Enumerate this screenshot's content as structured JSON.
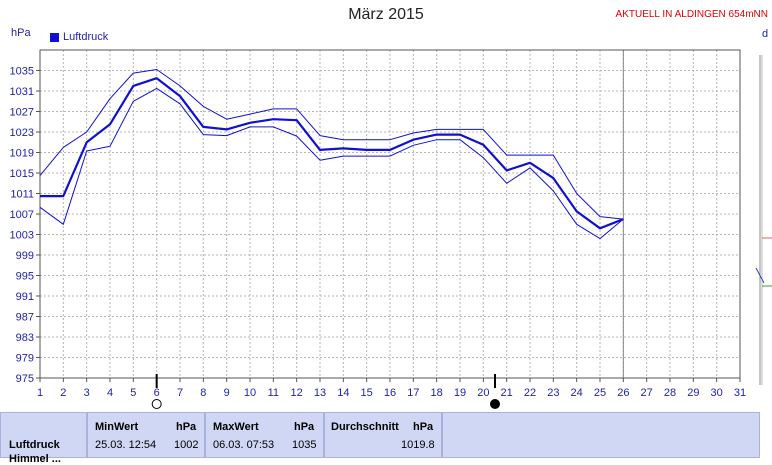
{
  "header": {
    "title": "März 2015",
    "aktuell": "AKTUELL IN ALDINGEN 654mNN",
    "unit": "hPa",
    "right_cut_label": "d"
  },
  "chart_data": {
    "type": "line",
    "title": "März 2015",
    "ylabel": "hPa",
    "xlabel": "",
    "ylim": [
      975,
      1039
    ],
    "yticks": [
      975,
      979,
      983,
      987,
      991,
      995,
      999,
      1003,
      1007,
      1011,
      1015,
      1019,
      1023,
      1027,
      1031,
      1035
    ],
    "xlim": [
      1,
      31
    ],
    "xticks": [
      1,
      2,
      3,
      4,
      5,
      6,
      7,
      8,
      9,
      10,
      11,
      12,
      13,
      14,
      15,
      16,
      17,
      18,
      19,
      20,
      21,
      22,
      23,
      24,
      25,
      26,
      27,
      28,
      29,
      30,
      31
    ],
    "grid": true,
    "legend": "top-left",
    "series": [
      {
        "name": "Luftdruck",
        "role": "mean",
        "color": "#1010d0",
        "x": [
          1,
          2,
          3,
          4,
          5,
          6,
          7,
          8,
          9,
          10,
          11,
          12,
          13,
          14,
          15,
          16,
          17,
          18,
          19,
          20,
          21,
          22,
          23,
          24,
          25,
          26
        ],
        "values": [
          1010.5,
          1010.5,
          1021,
          1024.5,
          1032,
          1033.5,
          1030,
          1024,
          1023.5,
          1024.8,
          1025.5,
          1025.3,
          1019.5,
          1019.8,
          1019.5,
          1019.5,
          1021.5,
          1022.5,
          1022.5,
          1020.5,
          1015.5,
          1017,
          1014,
          1007.5,
          1004.2,
          1006
        ]
      },
      {
        "role": "max",
        "color": "#1010d0",
        "x": [
          1,
          2,
          3,
          4,
          5,
          6,
          7,
          8,
          9,
          10,
          11,
          12,
          13,
          14,
          15,
          16,
          17,
          18,
          19,
          20,
          21,
          22,
          23,
          24,
          25,
          26
        ],
        "values": [
          1014.5,
          1020,
          1023,
          1029.5,
          1034.5,
          1035.2,
          1032,
          1028,
          1025.5,
          1026.5,
          1027.5,
          1027.5,
          1022.3,
          1021.5,
          1021.5,
          1021.5,
          1022.8,
          1023.5,
          1023.5,
          1023.5,
          1018.5,
          1018.5,
          1018.5,
          1011,
          1006.5,
          1006
        ]
      },
      {
        "role": "min",
        "color": "#1010d0",
        "x": [
          1,
          2,
          3,
          4,
          5,
          6,
          7,
          8,
          9,
          10,
          11,
          12,
          13,
          14,
          15,
          16,
          17,
          18,
          19,
          20,
          21,
          22,
          23,
          24,
          25,
          26
        ],
        "values": [
          1008.3,
          1005,
          1019.3,
          1020.2,
          1029,
          1031.5,
          1028.5,
          1022.5,
          1022.3,
          1024,
          1024,
          1022.2,
          1017.5,
          1018.3,
          1018.3,
          1018.3,
          1020.4,
          1021.5,
          1021.5,
          1018,
          1013,
          1016,
          1011.5,
          1005,
          1002.2,
          1006
        ]
      }
    ],
    "moon_phases": [
      {
        "day": 6,
        "phase": "full"
      },
      {
        "day": 20.5,
        "phase": "new"
      }
    ]
  },
  "colors": {
    "axis_text": "#1f1faa",
    "line": "#1010d0",
    "grid": "#b4b4b4",
    "panel": "#cfd7f4",
    "alert": "#e00000"
  },
  "table": {
    "row_label": "Luftdruck",
    "row_label_cut": "Himmel ...",
    "min": {
      "header": "MinWert",
      "unit": "hPa",
      "time": "25.03.  12:54",
      "value": "1002"
    },
    "max": {
      "header": "MaxWert",
      "unit": "hPa",
      "time": "06.03.  07:53",
      "value": "1035"
    },
    "avg": {
      "header": "Durchschnitt",
      "unit": "hPa",
      "value": "1019.8"
    }
  }
}
